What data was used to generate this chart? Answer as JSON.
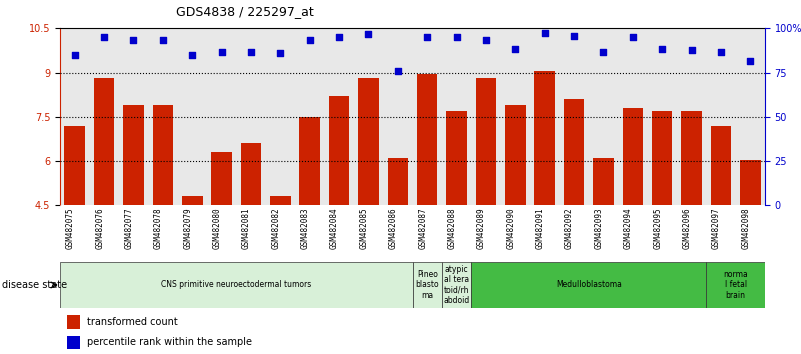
{
  "title": "GDS4838 / 225297_at",
  "samples": [
    "GSM482075",
    "GSM482076",
    "GSM482077",
    "GSM482078",
    "GSM482079",
    "GSM482080",
    "GSM482081",
    "GSM482082",
    "GSM482083",
    "GSM482084",
    "GSM482085",
    "GSM482086",
    "GSM482087",
    "GSM482088",
    "GSM482089",
    "GSM482090",
    "GSM482091",
    "GSM482092",
    "GSM482093",
    "GSM482094",
    "GSM482095",
    "GSM482096",
    "GSM482097",
    "GSM482098"
  ],
  "bar_values": [
    7.2,
    8.8,
    7.9,
    7.9,
    4.8,
    6.3,
    6.6,
    4.8,
    7.5,
    8.2,
    8.8,
    6.1,
    8.95,
    7.7,
    8.8,
    7.9,
    9.05,
    8.1,
    6.1,
    7.8,
    7.7,
    7.7,
    7.2,
    6.05
  ],
  "scatter_values": [
    9.6,
    10.2,
    10.1,
    10.1,
    9.6,
    9.7,
    9.7,
    9.65,
    10.1,
    10.2,
    10.3,
    9.05,
    10.2,
    10.2,
    10.1,
    9.8,
    10.35,
    10.25,
    9.7,
    10.2,
    9.8,
    9.75,
    9.7,
    9.4
  ],
  "bar_color": "#cc2200",
  "scatter_color": "#0000cc",
  "ylim_left": [
    4.5,
    10.5
  ],
  "ylim_right": [
    0,
    100
  ],
  "yticks_left": [
    4.5,
    6.0,
    7.5,
    9.0,
    10.5
  ],
  "ytick_labels_left": [
    "4.5",
    "6",
    "7.5",
    "9",
    "10.5"
  ],
  "yticks_right": [
    0,
    25,
    50,
    75,
    100
  ],
  "ytick_labels_right": [
    "0",
    "25",
    "50",
    "75",
    "100%"
  ],
  "hlines": [
    6.0,
    7.5,
    9.0
  ],
  "disease_groups": [
    {
      "label": "CNS primitive neuroectodermal tumors",
      "start": 0,
      "end": 12,
      "color": "#d8f0d8"
    },
    {
      "label": "Pineo\nblasto\nma",
      "start": 12,
      "end": 13,
      "color": "#d8f0d8"
    },
    {
      "label": "atypic\nal tera\ntoid/rh\nabdoid",
      "start": 13,
      "end": 14,
      "color": "#d8f0d8"
    },
    {
      "label": "Medulloblastoma",
      "start": 14,
      "end": 22,
      "color": "#44bb44"
    },
    {
      "label": "norma\nl fetal\nbrain",
      "start": 22,
      "end": 24,
      "color": "#44bb44"
    }
  ],
  "legend_bar_label": "transformed count",
  "legend_scatter_label": "percentile rank within the sample",
  "disease_state_label": "disease state",
  "background_color": "#ffffff",
  "plot_bg_color": "#e8e8e8"
}
